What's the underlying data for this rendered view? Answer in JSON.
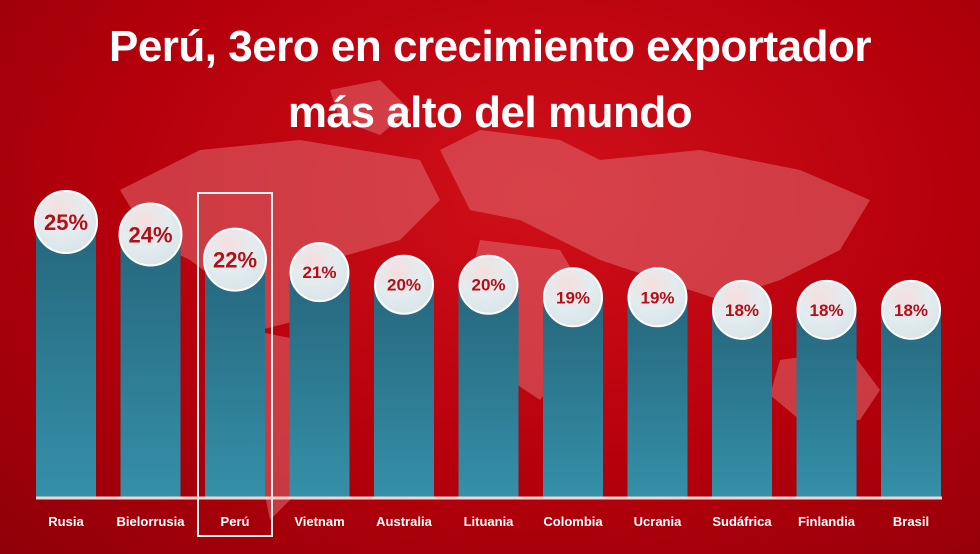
{
  "title_line1": "Perú, 3ero en crecimiento exportador",
  "title_line2": "más alto del mundo",
  "highlight": "Perú",
  "colors": {
    "bar": "#2e7f96",
    "background": "#c0000e",
    "label_text": "#b0101a",
    "bubble": "#e6eef2"
  },
  "chart_data": {
    "type": "bar",
    "title": "Perú, 3ero en crecimiento exportador más alto del mundo",
    "categories": [
      "Rusia",
      "Bielorrusia",
      "Perú",
      "Vietnam",
      "Australia",
      "Lituania",
      "Colombia",
      "Ucrania",
      "Sudáfrica",
      "Finlandia",
      "Brasil"
    ],
    "values": [
      25,
      24,
      22,
      21,
      20,
      20,
      19,
      19,
      18,
      18,
      18
    ],
    "labels": [
      "25%",
      "24%",
      "22%",
      "21%",
      "20%",
      "20%",
      "19%",
      "19%",
      "18%",
      "18%",
      "18%"
    ],
    "unit": "%",
    "xlabel": "",
    "ylabel": "",
    "ylim": [
      3,
      25
    ],
    "grid": false
  }
}
